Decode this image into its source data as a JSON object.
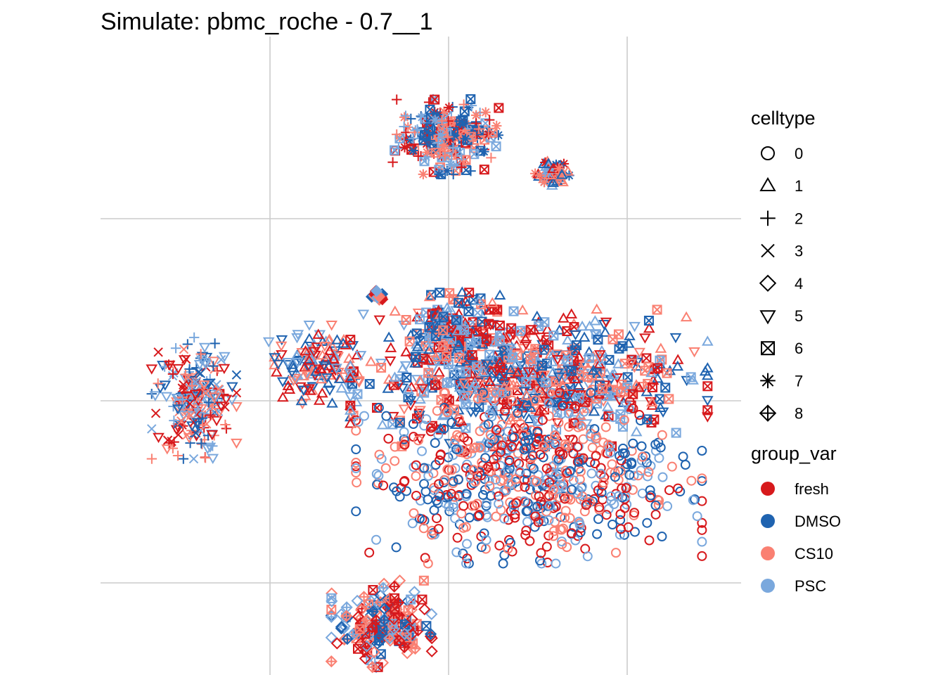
{
  "chart_data": {
    "type": "scatter",
    "title": "Simulate: pbmc_roche - 0.7__1",
    "xlabel": "",
    "ylabel": "",
    "grid": true,
    "x_ticks_shown": false,
    "y_ticks_shown": false,
    "xlim": [
      -3.5,
      3.5
    ],
    "ylim": [
      -3.5,
      3.5
    ],
    "grid_x": [
      -2,
      0,
      2
    ],
    "grid_y": [
      -2,
      0,
      2
    ],
    "legend_position": "right",
    "shape_legend": {
      "title": "celltype",
      "items": [
        {
          "label": "0",
          "shape": "circle"
        },
        {
          "label": "1",
          "shape": "triangle-up"
        },
        {
          "label": "2",
          "shape": "plus"
        },
        {
          "label": "3",
          "shape": "cross"
        },
        {
          "label": "4",
          "shape": "diamond"
        },
        {
          "label": "5",
          "shape": "triangle-down"
        },
        {
          "label": "6",
          "shape": "square-cross"
        },
        {
          "label": "7",
          "shape": "asterisk"
        },
        {
          "label": "8",
          "shape": "diamond-plus"
        }
      ]
    },
    "color_legend": {
      "title": "group_var",
      "items": [
        {
          "label": "fresh",
          "color": "#d7191c"
        },
        {
          "label": "DMSO",
          "color": "#1f63b0"
        },
        {
          "label": "CS10",
          "color": "#fa8072"
        },
        {
          "label": "PSC",
          "color": "#7aa8dd"
        }
      ]
    },
    "clusters": [
      {
        "celltype": "2",
        "shapes": [
          "plus",
          "square-cross",
          "asterisk"
        ],
        "center": [
          0.0,
          2.9
        ],
        "spread": [
          0.5,
          0.33
        ],
        "n": 220
      },
      {
        "celltype": "8",
        "shapes": [
          "triangle-up",
          "asterisk"
        ],
        "center": [
          1.15,
          2.5
        ],
        "spread": [
          0.16,
          0.12
        ],
        "n": 70
      },
      {
        "celltype": "3",
        "shapes": [
          "cross",
          "plus",
          "triangle-down"
        ],
        "center": [
          -2.85,
          0.05
        ],
        "spread": [
          0.38,
          0.55
        ],
        "n": 220
      },
      {
        "celltype": "5",
        "shapes": [
          "triangle-down",
          "triangle-up"
        ],
        "center": [
          -1.5,
          0.4
        ],
        "spread": [
          0.42,
          0.35
        ],
        "n": 130
      },
      {
        "celltype": "1",
        "shapes": [
          "triangle-up",
          "triangle-down",
          "square-cross"
        ],
        "center": [
          0.9,
          0.25
        ],
        "spread": [
          1.6,
          0.6
        ],
        "n": 650
      },
      {
        "celltype": "0",
        "shapes": [
          "circle"
        ],
        "center": [
          0.9,
          -0.85
        ],
        "spread": [
          1.55,
          0.75
        ],
        "n": 650
      },
      {
        "celltype": "6",
        "shapes": [
          "square-cross",
          "triangle-up"
        ],
        "center": [
          0.05,
          0.75
        ],
        "spread": [
          0.42,
          0.35
        ],
        "n": 160
      },
      {
        "celltype": "4",
        "shapes": [
          "diamond",
          "square-cross",
          "diamond-plus"
        ],
        "center": [
          -0.75,
          -2.45
        ],
        "spread": [
          0.45,
          0.38
        ],
        "n": 200
      },
      {
        "celltype": "7",
        "shapes": [
          "diamond"
        ],
        "center": [
          -0.8,
          1.15
        ],
        "spread": [
          0.08,
          0.06
        ],
        "n": 14
      }
    ]
  }
}
